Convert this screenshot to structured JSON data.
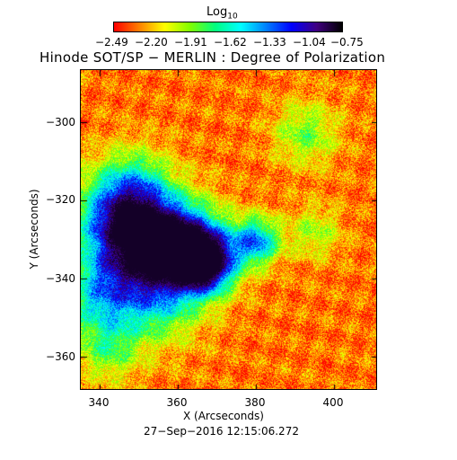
{
  "colorbar": {
    "title": "Log",
    "title_sub": "10",
    "ticks": [
      "−2.49",
      "−2.20",
      "−1.91",
      "−1.62",
      "−1.33",
      "−1.04",
      "−0.75"
    ],
    "colors": [
      "#ff0000",
      "#ff8000",
      "#ffff00",
      "#80ff00",
      "#00ff80",
      "#00ffff",
      "#0080ff",
      "#0000ff",
      "#400080",
      "#000000"
    ]
  },
  "title": "Hinode SOT/SP − MERLIN : Degree of Polarization",
  "axes": {
    "xlabel": "X (Arcseconds)",
    "ylabel": "Y (Arcseconds)",
    "xticks": [
      "340",
      "360",
      "380",
      "400"
    ],
    "yticks": [
      "−300",
      "−320",
      "−340",
      "−360"
    ]
  },
  "timestamp": "27−Sep−2016 12:15:06.272"
}
